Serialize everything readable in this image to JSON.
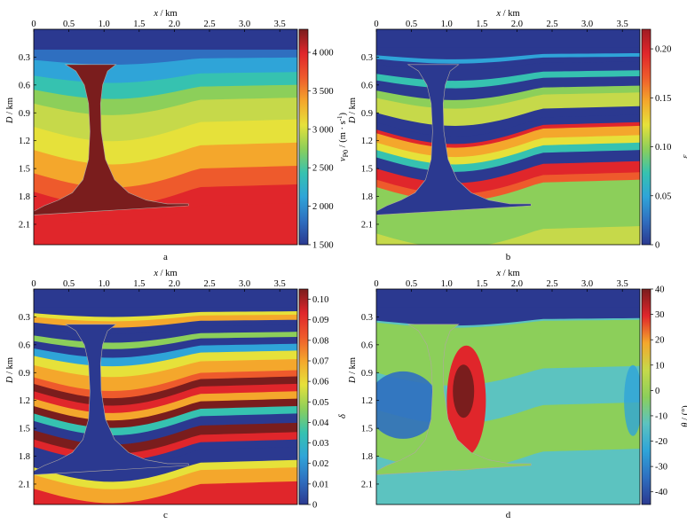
{
  "colors": {
    "velocity": [
      "#2b3990",
      "#2f6fc0",
      "#2fa4d8",
      "#36c2b0",
      "#8ccf5a",
      "#e6e13a",
      "#f4a72c",
      "#ee5a2c",
      "#e0262b"
    ],
    "velocity_dark": "#7a1d1d",
    "epsilon": [
      "#2b3990",
      "#2f6fc0",
      "#2fa4d8",
      "#36c2b0",
      "#8ccf5a",
      "#e6e13a",
      "#f4a72c",
      "#ee5a2c",
      "#e0262b",
      "#a01c23"
    ],
    "delta": [
      "#2b3990",
      "#2f6fc0",
      "#2fa4d8",
      "#36c2b0",
      "#8ccf5a",
      "#e6e13a",
      "#f4a72c",
      "#ee5a2c",
      "#e0262b",
      "#7a1d1d"
    ],
    "theta": [
      "#2b3990",
      "#2f6fc0",
      "#2fa4d8",
      "#5cc3c0",
      "#8ccf5a",
      "#c6d94a",
      "#f4a72c",
      "#e0262b",
      "#7a1d1d"
    ],
    "salt": "#2b3990",
    "background_theta": "#8ccf5a"
  },
  "chart_data": [
    {
      "type": "heatmap",
      "panel_label": "a",
      "xlabel_var": "x",
      "xlabel_unit": " / km",
      "ylabel_var": "D",
      "ylabel_unit": " / km",
      "x_ticks": [
        {
          "v": 0,
          "t": "0"
        },
        {
          "v": 0.5,
          "t": "0.5"
        },
        {
          "v": 1.0,
          "t": "1.0"
        },
        {
          "v": 1.5,
          "t": "1.5"
        },
        {
          "v": 2.0,
          "t": "2.0"
        },
        {
          "v": 2.5,
          "t": "2.5"
        },
        {
          "v": 3.0,
          "t": "3.0"
        },
        {
          "v": 3.5,
          "t": "3.5"
        }
      ],
      "y_ticks": [
        {
          "v": 0.3,
          "t": "0.3"
        },
        {
          "v": 0.6,
          "t": "0.6"
        },
        {
          "v": 0.9,
          "t": "0.9"
        },
        {
          "v": 1.2,
          "t": "1.2"
        },
        {
          "v": 1.5,
          "t": "1.5"
        },
        {
          "v": 1.8,
          "t": "1.8"
        },
        {
          "v": 2.1,
          "t": "2.1"
        }
      ],
      "xlim": [
        0,
        3.75
      ],
      "ylim": [
        0,
        2.32
      ],
      "colorbar": {
        "label": "v",
        "label_sub": "P0",
        "label_unit": " / (m · s",
        "label_sup": "-1",
        "label_close": ")",
        "range": [
          1500,
          4300
        ],
        "ticks": [
          {
            "v": 1500,
            "t": "1 500"
          },
          {
            "v": 2000,
            "t": "2 000"
          },
          {
            "v": 2500,
            "t": "2 500"
          },
          {
            "v": 3000,
            "t": "3 000"
          },
          {
            "v": 3500,
            "t": "3 500"
          },
          {
            "v": 4000,
            "t": "4 000"
          }
        ]
      },
      "salt_color": "#7a1d1d",
      "layer_stops": [
        {
          "d": 0.0,
          "c": "#2b3990"
        },
        {
          "d": 0.22,
          "c": "#2b3990"
        },
        {
          "d": 0.33,
          "c": "#2f6fc0"
        },
        {
          "d": 0.5,
          "c": "#2fa4d8"
        },
        {
          "d": 0.65,
          "c": "#36c2b0"
        },
        {
          "d": 0.8,
          "c": "#8ccf5a"
        },
        {
          "d": 1.05,
          "c": "#c6d94a"
        },
        {
          "d": 1.3,
          "c": "#e6e13a"
        },
        {
          "d": 1.55,
          "c": "#f4a72c"
        },
        {
          "d": 1.75,
          "c": "#ee5a2c"
        },
        {
          "d": 1.95,
          "c": "#e0262b"
        },
        {
          "d": 2.32,
          "c": "#e0262b"
        }
      ]
    },
    {
      "type": "heatmap",
      "panel_label": "b",
      "xlabel_var": "x",
      "xlabel_unit": " / km",
      "ylabel_var": "D",
      "ylabel_unit": " / km",
      "x_ticks": [
        {
          "v": 0,
          "t": "0"
        },
        {
          "v": 0.5,
          "t": "0.5"
        },
        {
          "v": 1.0,
          "t": "1.0"
        },
        {
          "v": 1.5,
          "t": "1.5"
        },
        {
          "v": 2.0,
          "t": "2.0"
        },
        {
          "v": 2.5,
          "t": "2.5"
        },
        {
          "v": 3.0,
          "t": "3.0"
        },
        {
          "v": 3.5,
          "t": "3.5"
        }
      ],
      "y_ticks": [
        {
          "v": 0.3,
          "t": "0.3"
        },
        {
          "v": 0.6,
          "t": "0.6"
        },
        {
          "v": 0.9,
          "t": "0.9"
        },
        {
          "v": 1.2,
          "t": "1.2"
        },
        {
          "v": 1.5,
          "t": "1.5"
        },
        {
          "v": 1.8,
          "t": "1.8"
        },
        {
          "v": 2.1,
          "t": "2.1"
        }
      ],
      "xlim": [
        0,
        3.75
      ],
      "ylim": [
        0,
        2.32
      ],
      "colorbar": {
        "label": "ε",
        "label_sub": "",
        "label_unit": "",
        "label_sup": "",
        "label_close": "",
        "range": [
          0,
          0.22
        ],
        "ticks": [
          {
            "v": 0,
            "t": "0"
          },
          {
            "v": 0.05,
            "t": "0.05"
          },
          {
            "v": 0.1,
            "t": "0.10"
          },
          {
            "v": 0.15,
            "t": "0.15"
          },
          {
            "v": 0.2,
            "t": "0.20"
          }
        ]
      },
      "salt_color": "#2b3990",
      "layer_stops": [
        {
          "d": 0.0,
          "c": "#2b3990"
        },
        {
          "d": 0.28,
          "c": "#2b3990"
        },
        {
          "d": 0.32,
          "c": "#2fa4d8"
        },
        {
          "d": 0.38,
          "c": "#2b3990"
        },
        {
          "d": 0.48,
          "c": "#2b3990"
        },
        {
          "d": 0.55,
          "c": "#36c2b0"
        },
        {
          "d": 0.66,
          "c": "#2b3990"
        },
        {
          "d": 0.74,
          "c": "#8ccf5a"
        },
        {
          "d": 0.9,
          "c": "#c6d94a"
        },
        {
          "d": 1.0,
          "c": "#2b3990"
        },
        {
          "d": 1.08,
          "c": "#2b3990"
        },
        {
          "d": 1.12,
          "c": "#e0262b"
        },
        {
          "d": 1.22,
          "c": "#f4a72c"
        },
        {
          "d": 1.3,
          "c": "#e6e13a"
        },
        {
          "d": 1.38,
          "c": "#36c2b0"
        },
        {
          "d": 1.5,
          "c": "#2b3990"
        },
        {
          "d": 1.62,
          "c": "#e0262b"
        },
        {
          "d": 1.7,
          "c": "#ee5a2c"
        },
        {
          "d": 1.78,
          "c": "#8ccf5a"
        },
        {
          "d": 2.2,
          "c": "#8ccf5a"
        },
        {
          "d": 2.32,
          "c": "#c6d94a"
        }
      ]
    },
    {
      "type": "heatmap",
      "panel_label": "c",
      "xlabel_var": "x",
      "xlabel_unit": " / km",
      "ylabel_var": "D",
      "ylabel_unit": " / km",
      "x_ticks": [
        {
          "v": 0,
          "t": "0"
        },
        {
          "v": 0.5,
          "t": "0.5"
        },
        {
          "v": 1.0,
          "t": "1.0"
        },
        {
          "v": 1.5,
          "t": "1.5"
        },
        {
          "v": 2.0,
          "t": "2.0"
        },
        {
          "v": 2.5,
          "t": "2.5"
        },
        {
          "v": 3.0,
          "t": "3.0"
        },
        {
          "v": 3.5,
          "t": "3.5"
        }
      ],
      "y_ticks": [
        {
          "v": 0.3,
          "t": "0.3"
        },
        {
          "v": 0.6,
          "t": "0.6"
        },
        {
          "v": 0.9,
          "t": "0.9"
        },
        {
          "v": 1.2,
          "t": "1.2"
        },
        {
          "v": 1.5,
          "t": "1.5"
        },
        {
          "v": 1.8,
          "t": "1.8"
        },
        {
          "v": 2.1,
          "t": "2.1"
        }
      ],
      "xlim": [
        0,
        3.75
      ],
      "ylim": [
        0,
        2.32
      ],
      "colorbar": {
        "label": "δ",
        "label_sub": "",
        "label_unit": "",
        "label_sup": "",
        "label_close": "",
        "range": [
          0,
          0.105
        ],
        "ticks": [
          {
            "v": 0,
            "t": "0"
          },
          {
            "v": 0.01,
            "t": "0.01"
          },
          {
            "v": 0.02,
            "t": "0.02"
          },
          {
            "v": 0.03,
            "t": "0.03"
          },
          {
            "v": 0.04,
            "t": "0.04"
          },
          {
            "v": 0.05,
            "t": "0.05"
          },
          {
            "v": 0.06,
            "t": "0.06"
          },
          {
            "v": 0.07,
            "t": "0.07"
          },
          {
            "v": 0.08,
            "t": "0.08"
          },
          {
            "v": 0.09,
            "t": "0.09"
          },
          {
            "v": 0.1,
            "t": "0.10"
          }
        ]
      },
      "salt_color": "#2b3990",
      "layer_stops": [
        {
          "d": 0.0,
          "c": "#2b3990"
        },
        {
          "d": 0.26,
          "c": "#2b3990"
        },
        {
          "d": 0.3,
          "c": "#e6e13a"
        },
        {
          "d": 0.36,
          "c": "#f4a72c"
        },
        {
          "d": 0.42,
          "c": "#2b3990"
        },
        {
          "d": 0.5,
          "c": "#2b3990"
        },
        {
          "d": 0.56,
          "c": "#8ccf5a"
        },
        {
          "d": 0.64,
          "c": "#2b3990"
        },
        {
          "d": 0.72,
          "c": "#2fa4d8"
        },
        {
          "d": 0.82,
          "c": "#e6e13a"
        },
        {
          "d": 0.95,
          "c": "#f4a72c"
        },
        {
          "d": 1.02,
          "c": "#ee5a2c"
        },
        {
          "d": 1.1,
          "c": "#7a1d1d"
        },
        {
          "d": 1.18,
          "c": "#e0262b"
        },
        {
          "d": 1.26,
          "c": "#f4a72c"
        },
        {
          "d": 1.34,
          "c": "#7a1d1d"
        },
        {
          "d": 1.42,
          "c": "#36c2b0"
        },
        {
          "d": 1.52,
          "c": "#2b3990"
        },
        {
          "d": 1.62,
          "c": "#7a1d1d"
        },
        {
          "d": 1.7,
          "c": "#e0262b"
        },
        {
          "d": 1.78,
          "c": "#2b3990"
        },
        {
          "d": 1.92,
          "c": "#2b3990"
        },
        {
          "d": 2.0,
          "c": "#e6e13a"
        },
        {
          "d": 2.15,
          "c": "#f4a72c"
        },
        {
          "d": 2.32,
          "c": "#e0262b"
        }
      ]
    },
    {
      "type": "heatmap",
      "panel_label": "d",
      "xlabel_var": "x",
      "xlabel_unit": " / km",
      "ylabel_var": "D",
      "ylabel_unit": " / km",
      "x_ticks": [
        {
          "v": 0,
          "t": "0"
        },
        {
          "v": 0.5,
          "t": "0.5"
        },
        {
          "v": 1.0,
          "t": "1.0"
        },
        {
          "v": 1.5,
          "t": "1.5"
        },
        {
          "v": 2.0,
          "t": "2.0"
        },
        {
          "v": 2.5,
          "t": "2.5"
        },
        {
          "v": 3.0,
          "t": "3.0"
        },
        {
          "v": 3.5,
          "t": "3.5"
        }
      ],
      "y_ticks": [
        {
          "v": 0.3,
          "t": "0.3"
        },
        {
          "v": 0.6,
          "t": "0.6"
        },
        {
          "v": 0.9,
          "t": "0.9"
        },
        {
          "v": 1.2,
          "t": "1.2"
        },
        {
          "v": 1.5,
          "t": "1.5"
        },
        {
          "v": 1.8,
          "t": "1.8"
        },
        {
          "v": 2.1,
          "t": "2.1"
        }
      ],
      "xlim": [
        0,
        3.75
      ],
      "ylim": [
        0,
        2.32
      ],
      "colorbar": {
        "label": "θ",
        "label_sub": "",
        "label_unit": " / (°)",
        "label_sup": "",
        "label_close": "",
        "range": [
          -45,
          40
        ],
        "ticks": [
          {
            "v": -40,
            "t": "-40"
          },
          {
            "v": -30,
            "t": "-30"
          },
          {
            "v": -20,
            "t": "-20"
          },
          {
            "v": -10,
            "t": "-10"
          },
          {
            "v": 0,
            "t": "0"
          },
          {
            "v": 10,
            "t": "10"
          },
          {
            "v": 20,
            "t": "20"
          },
          {
            "v": 30,
            "t": "30"
          },
          {
            "v": 40,
            "t": "40"
          }
        ]
      },
      "salt_color": "#8ccf5a",
      "layer_stops": [
        {
          "d": 0.0,
          "c": "#2b3990"
        },
        {
          "d": 0.34,
          "c": "#2b3990"
        },
        {
          "d": 0.36,
          "c": "#5cc3c0"
        },
        {
          "d": 0.5,
          "c": "#8ccf5a"
        },
        {
          "d": 0.9,
          "c": "#8ccf5a"
        },
        {
          "d": 1.3,
          "c": "#5cc3c0"
        },
        {
          "d": 1.8,
          "c": "#8ccf5a"
        },
        {
          "d": 2.32,
          "c": "#5cc3c0"
        }
      ]
    }
  ]
}
